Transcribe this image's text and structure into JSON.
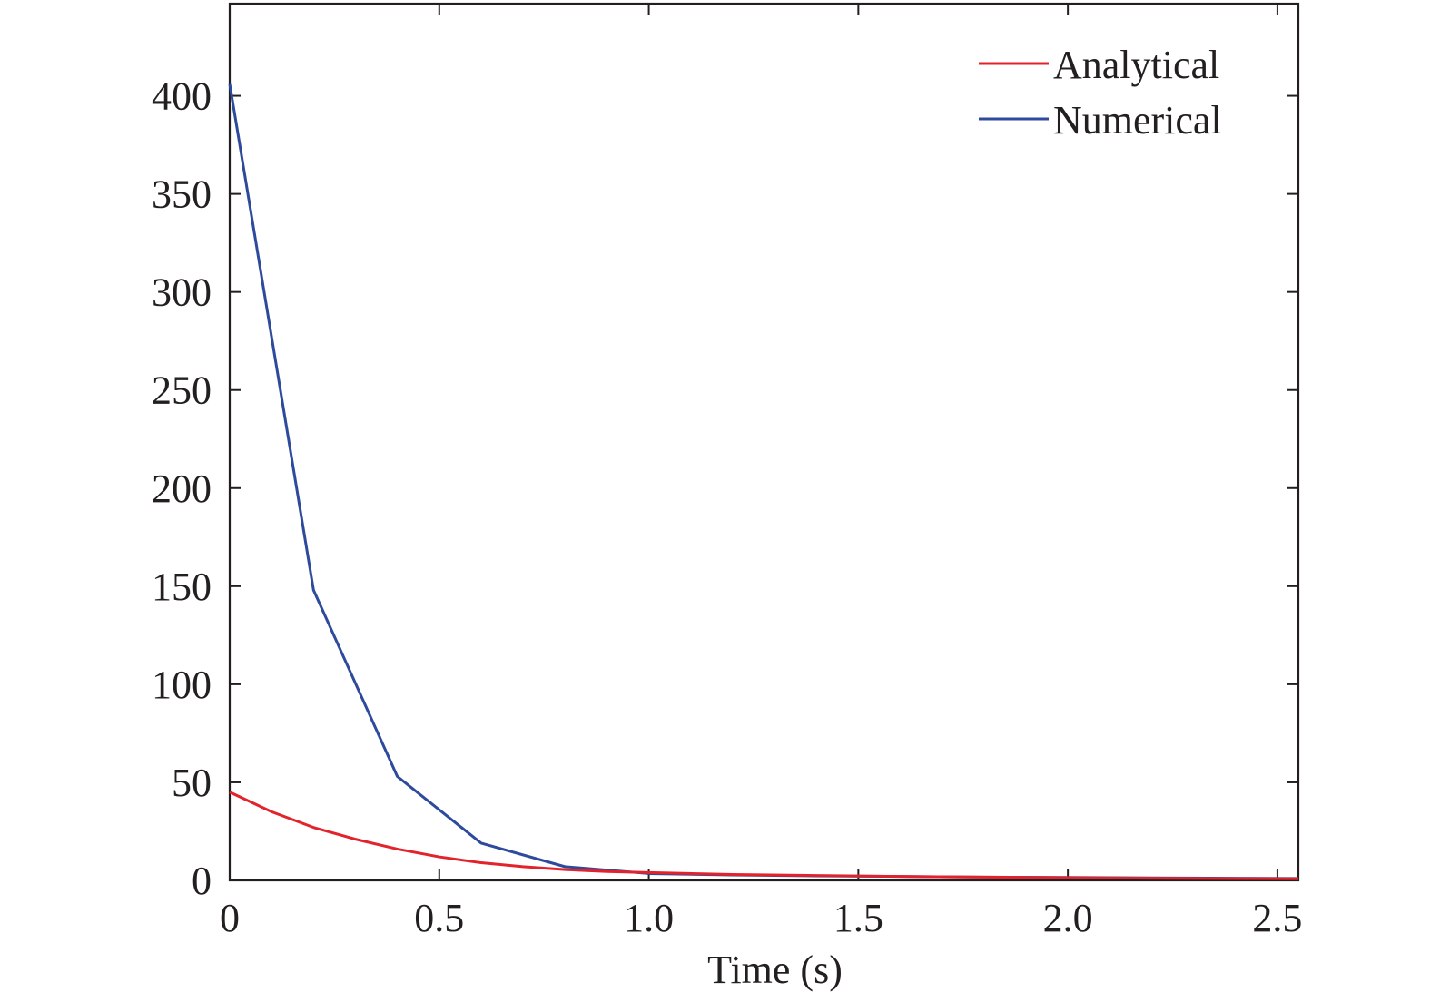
{
  "chart_data": {
    "type": "line",
    "title": "",
    "xlabel": "Time (s)",
    "ylabel": "",
    "xlim": [
      0,
      2.55
    ],
    "ylim": [
      0,
      447
    ],
    "x_ticks": [
      0,
      0.5,
      1.0,
      1.5,
      2.0,
      2.5
    ],
    "x_tick_labels": [
      "0",
      "0.5",
      "1.0",
      "1.5",
      "2.0",
      "2.5"
    ],
    "y_ticks": [
      0,
      50,
      100,
      150,
      200,
      250,
      300,
      350,
      400
    ],
    "y_tick_labels": [
      "0",
      "50",
      "100",
      "150",
      "200",
      "250",
      "300",
      "350",
      "400"
    ],
    "grid": false,
    "legend_position": "top-right",
    "series": [
      {
        "name": "Analytical",
        "color": "#e3232c",
        "x": [
          0,
          0.1,
          0.2,
          0.3,
          0.4,
          0.5,
          0.6,
          0.7,
          0.8,
          0.9,
          1.0,
          1.2,
          1.4,
          1.6,
          1.8,
          2.0,
          2.2,
          2.4,
          2.55
        ],
        "y": [
          45,
          35,
          27,
          21,
          16,
          12,
          9,
          7,
          5.5,
          4.5,
          4,
          3,
          2.5,
          2,
          1.7,
          1.4,
          1.1,
          0.9,
          0.8
        ]
      },
      {
        "name": "Numerical",
        "color": "#2e4a9c",
        "x": [
          0,
          0.2,
          0.4,
          0.6,
          0.8,
          1.0,
          1.2,
          1.4,
          1.6,
          1.8,
          2.0,
          2.2,
          2.4,
          2.55
        ],
        "y": [
          406,
          148,
          53,
          19,
          7,
          3.5,
          2.8,
          2.3,
          2,
          1.7,
          1.5,
          1.3,
          1.1,
          1
        ]
      }
    ]
  }
}
